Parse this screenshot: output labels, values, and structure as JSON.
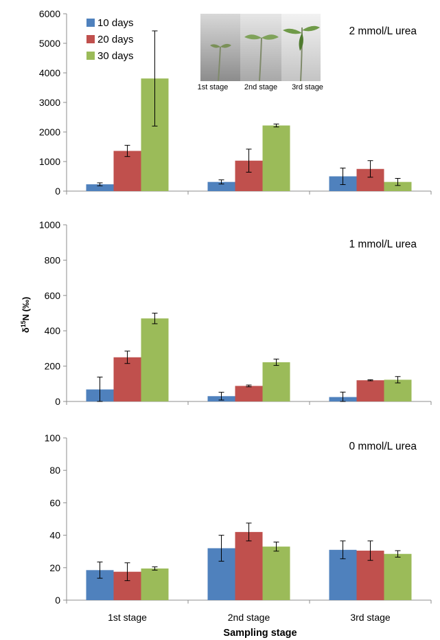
{
  "chart_data": [
    {
      "type": "bar",
      "panel": "top",
      "annotation": "2 mmol/L urea",
      "categories": [
        "1st stage",
        "2nd stage",
        "3rd stage"
      ],
      "ylim": [
        0,
        6000
      ],
      "yticks": [
        "0",
        "1000",
        "2000",
        "3000",
        "4000",
        "5000",
        "6000"
      ],
      "series": [
        {
          "name": "10 days",
          "color": "#4f81bd",
          "values": [
            230,
            310,
            500
          ],
          "errors": [
            50,
            70,
            280
          ]
        },
        {
          "name": "20 days",
          "color": "#c0504d",
          "values": [
            1360,
            1030,
            750
          ],
          "errors": [
            190,
            390,
            280
          ]
        },
        {
          "name": "30 days",
          "color": "#9bbb59",
          "values": [
            3810,
            2220,
            310
          ],
          "errors": [
            1610,
            50,
            120
          ]
        }
      ]
    },
    {
      "type": "bar",
      "panel": "middle",
      "annotation": "1 mmol/L urea",
      "categories": [
        "1st stage",
        "2nd stage",
        "3rd stage"
      ],
      "ylim": [
        0,
        1000
      ],
      "yticks": [
        "0",
        "200",
        "400",
        "600",
        "800",
        "1000"
      ],
      "series": [
        {
          "name": "10 days",
          "color": "#4f81bd",
          "values": [
            68,
            30,
            25
          ],
          "errors": [
            70,
            22,
            28
          ]
        },
        {
          "name": "20 days",
          "color": "#c0504d",
          "values": [
            250,
            88,
            120
          ],
          "errors": [
            35,
            5,
            3
          ]
        },
        {
          "name": "30 days",
          "color": "#9bbb59",
          "values": [
            470,
            222,
            123
          ],
          "errors": [
            30,
            18,
            18
          ]
        }
      ]
    },
    {
      "type": "bar",
      "panel": "bottom",
      "annotation": "0 mmol/L urea",
      "categories": [
        "1st stage",
        "2nd stage",
        "3rd stage"
      ],
      "ylim": [
        0,
        100
      ],
      "yticks": [
        "0",
        "20",
        "40",
        "60",
        "80",
        "100"
      ],
      "series": [
        {
          "name": "10 days",
          "color": "#4f81bd",
          "values": [
            18.5,
            32,
            31
          ],
          "errors": [
            5,
            8,
            5.5
          ]
        },
        {
          "name": "20 days",
          "color": "#c0504d",
          "values": [
            17.5,
            42,
            30.5
          ],
          "errors": [
            5.5,
            5.5,
            6
          ]
        },
        {
          "name": "30 days",
          "color": "#9bbb59",
          "values": [
            19.5,
            33,
            28.5
          ],
          "errors": [
            1,
            2.8,
            2
          ]
        }
      ]
    }
  ],
  "legend": [
    "10 days",
    "20 days",
    "30 days"
  ],
  "ylabel": "δ15N (‰)",
  "ylabel_main": "δ",
  "ylabel_sup": "15",
  "ylabel_rest": "N (‰)",
  "xlabel": "Sampling stage",
  "inset_captions": [
    "1st stage",
    "2nd stage",
    "3rd stage"
  ]
}
